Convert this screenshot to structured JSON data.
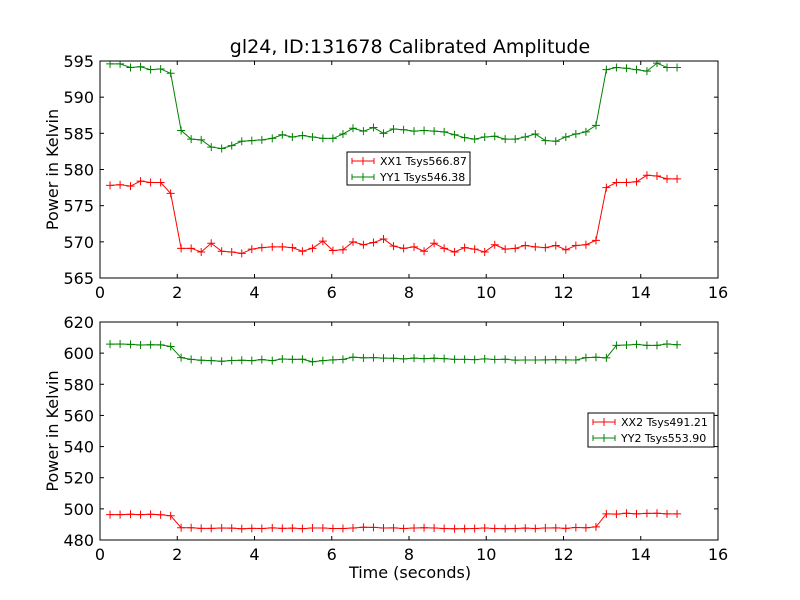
{
  "figure": {
    "title": "gl24, ID:131678 Calibrated Amplitude",
    "xlabel": "Time (seconds)"
  },
  "chart_data": [
    {
      "type": "line",
      "ylabel": "Power in Kelvin",
      "xlim": [
        0,
        16
      ],
      "ylim": [
        565,
        595
      ],
      "xticks": [
        0,
        2,
        4,
        6,
        8,
        10,
        12,
        14,
        16
      ],
      "yticks": [
        565,
        570,
        575,
        580,
        585,
        590,
        595
      ],
      "grid": false,
      "legend_position": "center",
      "x": [
        0.26,
        0.52,
        0.79,
        1.05,
        1.31,
        1.57,
        1.83,
        2.1,
        2.36,
        2.62,
        2.88,
        3.15,
        3.41,
        3.67,
        3.93,
        4.19,
        4.46,
        4.72,
        4.98,
        5.24,
        5.5,
        5.77,
        6.03,
        6.29,
        6.55,
        6.82,
        7.08,
        7.34,
        7.6,
        7.86,
        8.13,
        8.39,
        8.65,
        8.91,
        9.18,
        9.44,
        9.7,
        9.96,
        10.22,
        10.49,
        10.75,
        11.01,
        11.27,
        11.53,
        11.8,
        12.06,
        12.32,
        12.58,
        12.84,
        13.11,
        13.37,
        13.63,
        13.89,
        14.16,
        14.42,
        14.68,
        14.94
      ],
      "series": [
        {
          "name": "XX1 Tsys566.87",
          "color": "#ff0000",
          "values": [
            577.8,
            577.9,
            577.7,
            578.4,
            578.2,
            578.2,
            576.7,
            569.1,
            569.1,
            568.6,
            569.8,
            568.7,
            568.6,
            568.4,
            569.0,
            569.2,
            569.3,
            569.3,
            569.2,
            568.7,
            569.1,
            570.1,
            568.8,
            568.9,
            570.0,
            569.6,
            569.9,
            570.4,
            569.4,
            569.1,
            569.3,
            568.7,
            569.8,
            569.1,
            568.6,
            569.2,
            569.0,
            568.6,
            569.6,
            569.0,
            569.1,
            569.5,
            569.3,
            569.2,
            569.5,
            568.9,
            569.5,
            569.6,
            570.2,
            577.5,
            578.2,
            578.2,
            578.3,
            579.2,
            579.1,
            578.7,
            578.7
          ]
        },
        {
          "name": "YY1 Tsys546.38",
          "color": "#008000",
          "values": [
            594.6,
            594.6,
            594.1,
            594.2,
            593.8,
            593.9,
            593.3,
            585.4,
            584.2,
            584.1,
            583.1,
            582.9,
            583.3,
            583.9,
            584.0,
            584.1,
            584.3,
            584.8,
            584.5,
            584.7,
            584.5,
            584.3,
            584.3,
            584.9,
            585.7,
            585.3,
            585.8,
            585.0,
            585.6,
            585.5,
            585.3,
            585.4,
            585.3,
            585.2,
            584.8,
            584.4,
            584.2,
            584.5,
            584.6,
            584.2,
            584.2,
            584.5,
            584.9,
            584.0,
            583.9,
            584.5,
            584.9,
            585.2,
            586.1,
            593.8,
            594.1,
            594.0,
            593.8,
            593.6,
            594.7,
            594.1,
            594.1
          ]
        }
      ]
    },
    {
      "type": "line",
      "ylabel": "Power in Kelvin",
      "xlim": [
        0,
        16
      ],
      "ylim": [
        480,
        620
      ],
      "xticks": [
        0,
        2,
        4,
        6,
        8,
        10,
        12,
        14,
        16
      ],
      "yticks": [
        480,
        500,
        520,
        540,
        560,
        580,
        600,
        620
      ],
      "grid": false,
      "legend_position": "center-right",
      "x": [
        0.26,
        0.52,
        0.79,
        1.05,
        1.31,
        1.57,
        1.83,
        2.1,
        2.36,
        2.62,
        2.88,
        3.15,
        3.41,
        3.67,
        3.93,
        4.19,
        4.46,
        4.72,
        4.98,
        5.24,
        5.5,
        5.77,
        6.03,
        6.29,
        6.55,
        6.82,
        7.08,
        7.34,
        7.6,
        7.86,
        8.13,
        8.39,
        8.65,
        8.91,
        9.18,
        9.44,
        9.7,
        9.96,
        10.22,
        10.49,
        10.75,
        11.01,
        11.27,
        11.53,
        11.8,
        12.06,
        12.32,
        12.58,
        12.84,
        13.11,
        13.37,
        13.63,
        13.89,
        14.16,
        14.42,
        14.68,
        14.94
      ],
      "series": [
        {
          "name": "XX2 Tsys491.21",
          "color": "#ff0000",
          "values": [
            496.3,
            496.3,
            496.5,
            496.3,
            496.5,
            496.2,
            495.6,
            487.9,
            487.9,
            487.5,
            487.5,
            487.7,
            487.6,
            487.2,
            487.5,
            487.4,
            487.8,
            487.5,
            487.6,
            487.3,
            487.7,
            487.7,
            487.4,
            487.4,
            487.7,
            488.2,
            488.1,
            487.7,
            487.8,
            487.4,
            487.7,
            487.9,
            487.7,
            487.4,
            487.2,
            487.3,
            487.4,
            487.7,
            487.4,
            487.3,
            487.4,
            487.6,
            487.4,
            487.7,
            487.8,
            487.5,
            488.0,
            487.9,
            488.4,
            496.8,
            496.6,
            497.2,
            496.8,
            497.1,
            497.2,
            496.8,
            496.8
          ]
        },
        {
          "name": "YY2 Tsys553.90",
          "color": "#008000",
          "values": [
            605.8,
            605.9,
            605.6,
            605.2,
            605.4,
            605.3,
            604.3,
            597.1,
            596.0,
            595.4,
            595.2,
            594.8,
            595.3,
            595.4,
            595.2,
            595.8,
            595.2,
            596.2,
            596.0,
            596.1,
            594.5,
            595.2,
            595.7,
            596.0,
            597.4,
            597.0,
            597.1,
            596.8,
            596.7,
            596.3,
            596.8,
            596.5,
            596.7,
            596.5,
            596.0,
            596.0,
            595.8,
            596.3,
            595.9,
            596.1,
            595.5,
            595.6,
            595.6,
            595.7,
            595.8,
            595.7,
            595.6,
            597.1,
            597.4,
            597.0,
            605.0,
            605.2,
            605.6,
            605.0,
            605.0,
            605.9,
            605.4
          ]
        }
      ]
    }
  ]
}
